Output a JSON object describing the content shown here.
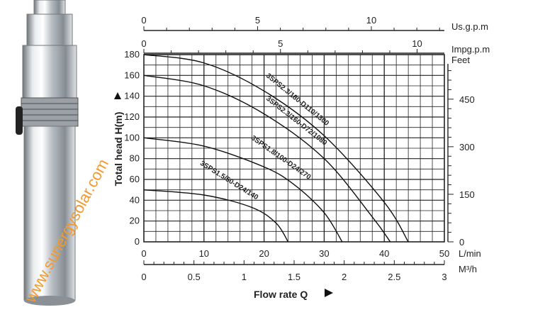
{
  "watermark": "www.sunergysolar.com",
  "colors": {
    "grid": "#222222",
    "curve": "#111111",
    "watermark": "#f29a2e",
    "steel": "#c9ced3"
  },
  "chart_data": {
    "type": "line",
    "grid": true,
    "x_axes": {
      "lmin": {
        "unit": "L/min",
        "range": [
          0,
          50
        ],
        "ticks": [
          "0",
          "10",
          "20",
          "30",
          "40",
          "50"
        ]
      },
      "m3h": {
        "unit": "M³/h",
        "range": [
          0,
          3
        ],
        "ticks": [
          "0",
          "0.5",
          "1",
          "1.5",
          "2",
          "2.5",
          "3"
        ]
      },
      "usgpm": {
        "unit": "Us.g.p.m",
        "ticks": [
          "0",
          "5",
          "10"
        ]
      },
      "impgpm": {
        "unit": "Impg.p.m",
        "ticks": [
          "0",
          "5",
          "10"
        ]
      }
    },
    "xlabel": "Flow rate Q",
    "ylabel": "Total head H(m)",
    "ylim": [
      0,
      180
    ],
    "y_ticks": [
      "0",
      "20",
      "40",
      "60",
      "80",
      "100",
      "120",
      "140",
      "160",
      "180"
    ],
    "y2": {
      "unit": "Feet",
      "ticks": [
        "0",
        "150",
        "300",
        "450"
      ]
    },
    "series": [
      {
        "name": "3SPS2.3/180-D110/1300",
        "x": [
          0,
          10,
          20,
          30,
          40,
          44
        ],
        "y": [
          180,
          172,
          145,
          102,
          38,
          0
        ]
      },
      {
        "name": "3SPS2.3/160-D72/1080",
        "x": [
          0,
          10,
          20,
          30,
          38,
          41
        ],
        "y": [
          160,
          150,
          123,
          80,
          24,
          0
        ]
      },
      {
        "name": "3SPS1.8/100-D24/270",
        "x": [
          0,
          10,
          20,
          25,
          30,
          33
        ],
        "y": [
          100,
          92,
          72,
          55,
          28,
          0
        ]
      },
      {
        "name": "3SPS1.5/50-D24/140",
        "x": [
          0,
          10,
          18,
          22,
          24
        ],
        "y": [
          50,
          45,
          33,
          18,
          0
        ]
      }
    ]
  }
}
